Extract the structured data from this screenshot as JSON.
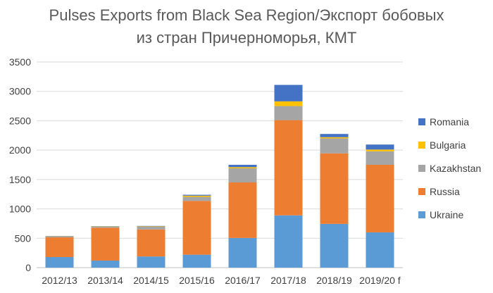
{
  "chart_data": {
    "type": "bar",
    "stacked": true,
    "title_line1": "Pulses Exports from Black Sea Region/Экспорт бобовых",
    "title_line2": "из стран Причерноморья, КМТ",
    "categories": [
      "2012/13",
      "2013/14",
      "2014/15",
      "2015/16",
      "2016/17",
      "2017/18",
      "2018/19",
      "2019/20 f"
    ],
    "series": [
      {
        "name": "Ukraine",
        "color": "#5B9BD5",
        "values": [
          180,
          120,
          190,
          220,
          505,
          890,
          745,
          600
        ]
      },
      {
        "name": "Russia",
        "color": "#ED7D31",
        "values": [
          335,
          560,
          460,
          915,
          945,
          1620,
          1200,
          1150
        ]
      },
      {
        "name": "Kazakhstan",
        "color": "#A5A5A5",
        "values": [
          15,
          15,
          45,
          70,
          240,
          240,
          255,
          230
        ]
      },
      {
        "name": "Bulgaria",
        "color": "#FFC000",
        "values": [
          5,
          5,
          8,
          20,
          20,
          80,
          20,
          30
        ]
      },
      {
        "name": "Romania",
        "color": "#4472C4",
        "values": [
          5,
          5,
          7,
          15,
          40,
          280,
          55,
          85
        ]
      }
    ],
    "yticks": [
      "0",
      "500",
      "1000",
      "1500",
      "2000",
      "2500",
      "3000",
      "3500"
    ],
    "ylim": [
      0,
      3500
    ],
    "grid": true,
    "legend_position": "right"
  }
}
